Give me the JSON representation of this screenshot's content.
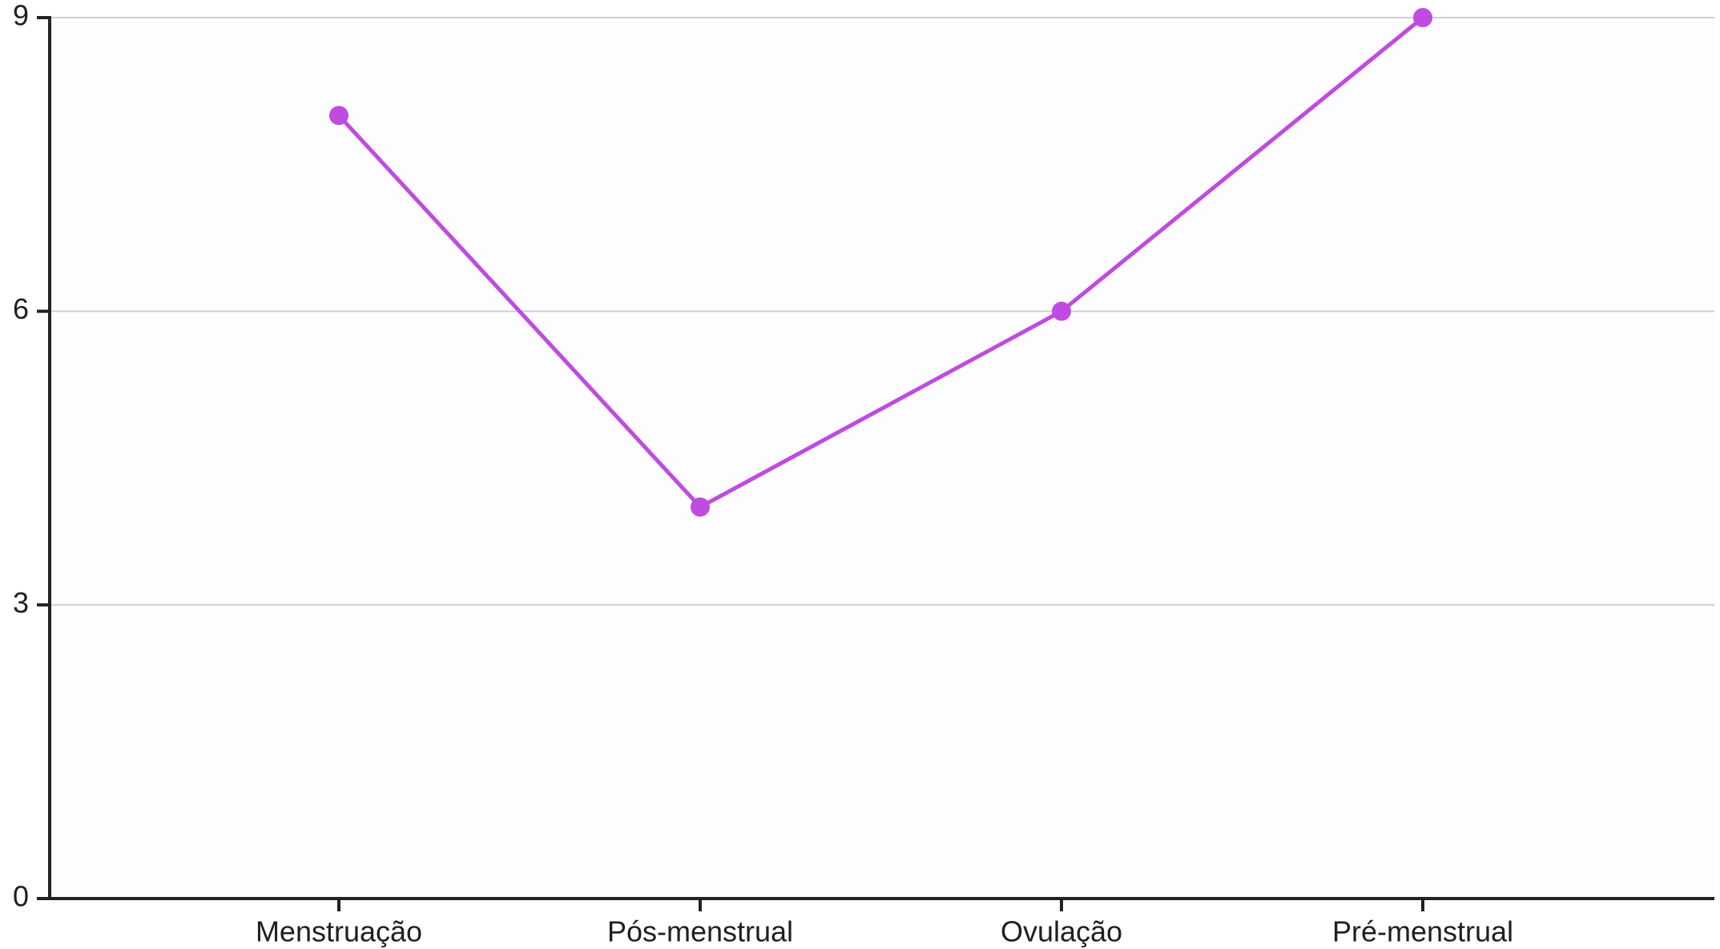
{
  "chart_data": {
    "type": "line",
    "title": "",
    "xlabel": "",
    "ylabel": "",
    "categories": [
      "Menstruação",
      "Pós-menstrual",
      "Ovulação",
      "Pré-menstrual"
    ],
    "series": [
      {
        "values": [
          8,
          4,
          6,
          9
        ],
        "color": "#bf4be0"
      }
    ],
    "ylim": [
      0,
      9
    ],
    "yticks": [
      0,
      3,
      6,
      9
    ],
    "ytick_labels": [
      "0",
      "3",
      "6",
      "9"
    ],
    "grid": "horizontal",
    "legend": "none",
    "colors": {
      "line": "#bf4be0",
      "axis": "#222222",
      "grid": "#cfcfcf",
      "background": "#fdfcfe"
    }
  }
}
